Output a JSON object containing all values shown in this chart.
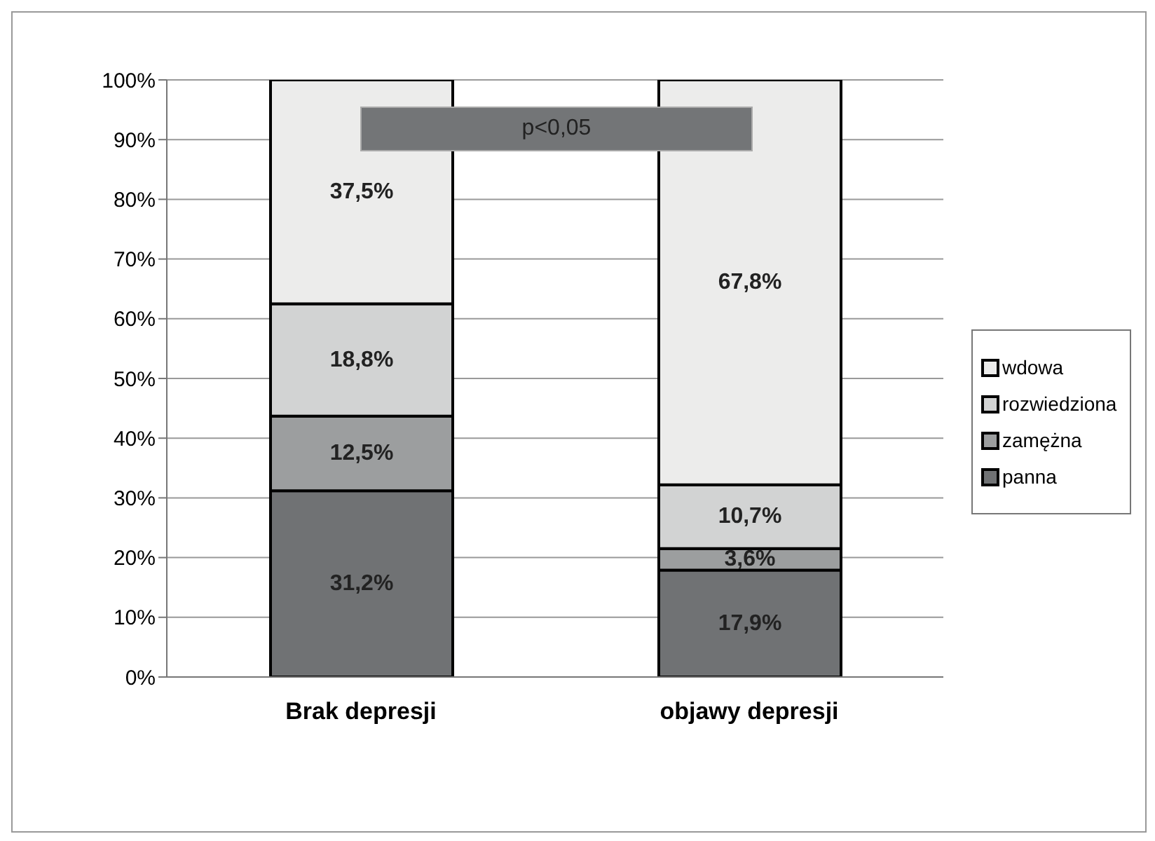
{
  "chart_data": {
    "type": "bar",
    "stacked": true,
    "categories": [
      "Brak depresji",
      "objawy depresji"
    ],
    "series": [
      {
        "name": "panna",
        "color": "#707274",
        "values": [
          31.2,
          17.9
        ],
        "value_labels": [
          "31,2%",
          "17,9%"
        ]
      },
      {
        "name": "zamężna",
        "color": "#9c9e9f",
        "values": [
          12.5,
          3.6
        ],
        "value_labels": [
          "12,5%",
          "3,6%"
        ]
      },
      {
        "name": "rozwiedziona",
        "color": "#d2d3d3",
        "values": [
          18.8,
          10.7
        ],
        "value_labels": [
          "18,8%",
          "10,7%"
        ]
      },
      {
        "name": "wdowa",
        "color": "#ececeb",
        "values": [
          37.5,
          67.8
        ],
        "value_labels": [
          "37,5%",
          "67,8%"
        ]
      }
    ],
    "ylim": [
      0,
      100
    ],
    "yticks": [
      {
        "value": 0,
        "label": "0%"
      },
      {
        "value": 10,
        "label": "10%"
      },
      {
        "value": 20,
        "label": "20%"
      },
      {
        "value": 30,
        "label": "30%"
      },
      {
        "value": 40,
        "label": "40%"
      },
      {
        "value": 50,
        "label": "50%"
      },
      {
        "value": 60,
        "label": "60%"
      },
      {
        "value": 70,
        "label": "70%"
      },
      {
        "value": 80,
        "label": "80%"
      },
      {
        "value": 90,
        "label": "90%"
      },
      {
        "value": 100,
        "label": "100%"
      }
    ],
    "grid": "y",
    "legend": "right",
    "annotations": [
      "p<0,05"
    ]
  }
}
